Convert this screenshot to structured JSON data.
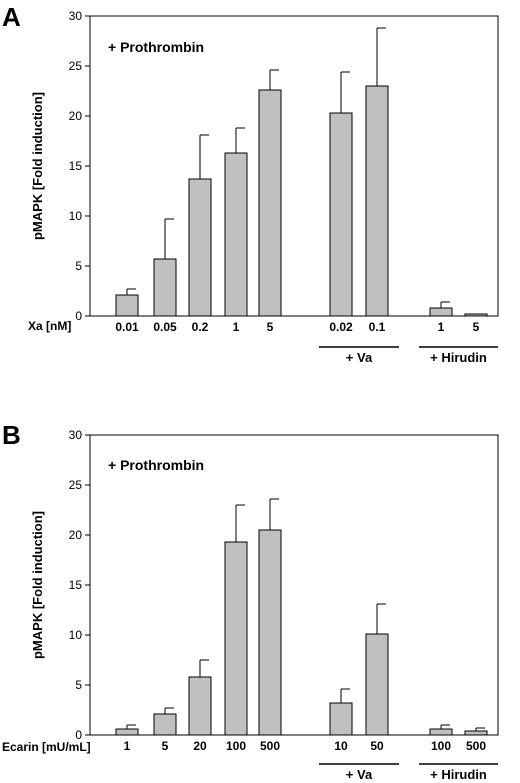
{
  "chart_data": [
    {
      "type": "bar",
      "panel": "A",
      "annotation": "+ Prothrombin",
      "ylabel": "pMAPK [Fold induction]",
      "xlabel": "Xa [nM]",
      "ylim": [
        0,
        30
      ],
      "yticks": [
        0,
        5,
        10,
        15,
        20,
        25,
        30
      ],
      "categories": [
        "0.01",
        "0.05",
        "0.2",
        "1",
        "5",
        "0.02",
        "0.1",
        "1",
        "5"
      ],
      "values": [
        2.1,
        5.7,
        13.7,
        16.3,
        22.6,
        20.3,
        23.0,
        0.8,
        0.2
      ],
      "errors": [
        0.6,
        4.0,
        4.4,
        2.5,
        2.0,
        4.1,
        5.8,
        0.6,
        0.0
      ],
      "groups": [
        {
          "label": "+ Va",
          "categories": [
            "0.02",
            "0.1"
          ]
        },
        {
          "label": "+ Hirudin",
          "categories": [
            "1",
            "5"
          ]
        }
      ],
      "bar_color": "#c0c0c0"
    },
    {
      "type": "bar",
      "panel": "B",
      "annotation": "+ Prothrombin",
      "ylabel": "pMAPK [Fold induction]",
      "xlabel": "Ecarin [mU/mL]",
      "ylim": [
        0,
        30
      ],
      "yticks": [
        0,
        5,
        10,
        15,
        20,
        25,
        30
      ],
      "categories": [
        "1",
        "5",
        "20",
        "100",
        "500",
        "10",
        "50",
        "100",
        "500"
      ],
      "values": [
        0.6,
        2.1,
        5.8,
        19.3,
        20.5,
        3.2,
        10.1,
        0.6,
        0.4
      ],
      "errors": [
        0.4,
        0.6,
        1.7,
        3.7,
        3.1,
        1.4,
        3.0,
        0.4,
        0.3
      ],
      "groups": [
        {
          "label": "+ Va",
          "categories": [
            "10",
            "50"
          ]
        },
        {
          "label": "+ Hirudin",
          "categories": [
            "100",
            "500"
          ]
        }
      ],
      "bar_color": "#c0c0c0"
    }
  ]
}
